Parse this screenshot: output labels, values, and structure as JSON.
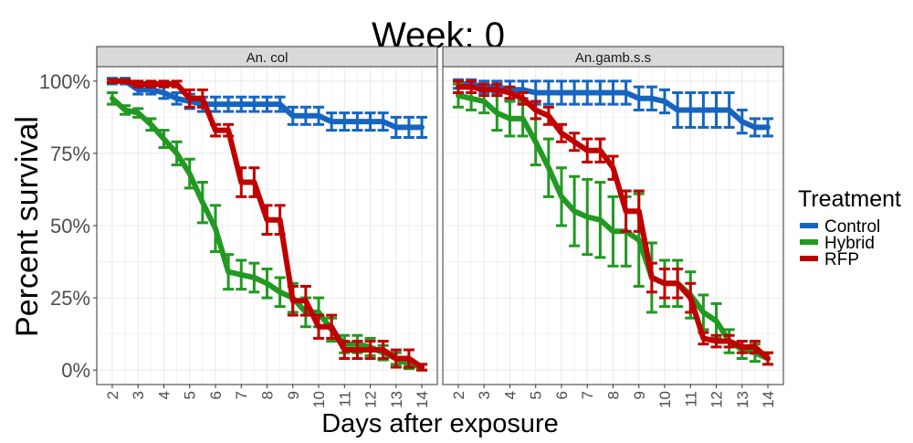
{
  "chart_data": {
    "type": "line",
    "title": "Week: 0",
    "xlabel": "Days after exposure",
    "ylabel": "Percent survival",
    "x": [
      2,
      3,
      4,
      5,
      6,
      7,
      8,
      9,
      10,
      11,
      12,
      13,
      14
    ],
    "ylim": [
      0,
      100
    ],
    "y_ticks": [
      "0%",
      "25%",
      "50%",
      "75%",
      "100%"
    ],
    "legend_title": "Treatment",
    "legend_position": "right",
    "grid": true,
    "colors": {
      "Control": "#1565c0",
      "Hybrid": "#229922",
      "RFP": "#c00000"
    },
    "panels": [
      {
        "title": "An. col",
        "series": [
          {
            "name": "Control",
            "x": [
              2,
              2.5,
              3,
              3.5,
              4,
              4.5,
              5,
              5.5,
              6,
              6.5,
              7,
              7.5,
              8,
              8.5,
              9,
              9.5,
              10,
              10.5,
              11,
              11.5,
              12,
              12.5,
              13,
              13.5,
              14
            ],
            "y": [
              100,
              100,
              97,
              97,
              96,
              94,
              93,
              92,
              92,
              92,
              92,
              92,
              92,
              92,
              88,
              88,
              88,
              86,
              86,
              86,
              86,
              86,
              84,
              84,
              84
            ],
            "err": [
              1,
              1,
              1.5,
              1.5,
              2,
              2,
              2.5,
              2.5,
              2.5,
              2.5,
              2.5,
              2.5,
              2.5,
              2.5,
              3,
              3,
              3,
              3,
              3,
              3,
              3,
              3,
              3.5,
              3.5,
              3.5
            ]
          },
          {
            "name": "Hybrid",
            "x": [
              2,
              2.5,
              3,
              3.5,
              4,
              4.5,
              5,
              5.5,
              6,
              6.5,
              7,
              7.5,
              8,
              8.5,
              9,
              9.5,
              10,
              10.5,
              11,
              11.5,
              12,
              12.5,
              13,
              13.5,
              14
            ],
            "y": [
              94,
              90,
              89,
              85,
              80,
              75,
              68,
              58,
              49,
              34,
              33,
              32,
              30,
              27,
              25,
              20,
              20,
              14,
              9,
              9,
              8,
              6,
              4,
              2,
              1
            ],
            "err": [
              2,
              1.5,
              1.5,
              2,
              3,
              4,
              5,
              7,
              8,
              6,
              5,
              5,
              5,
              5,
              5,
              5,
              5,
              4,
              3,
              3,
              3,
              2.5,
              2,
              1.5,
              1
            ]
          },
          {
            "name": "RFP",
            "x": [
              2,
              2.5,
              3,
              3.5,
              4,
              4.5,
              5,
              5.5,
              6,
              6.5,
              7,
              7.5,
              8,
              8.5,
              9,
              9.5,
              10,
              10.5,
              11,
              11.5,
              12,
              12.5,
              13,
              13.5,
              14
            ],
            "y": [
              100,
              100,
              99,
              99,
              99,
              99,
              94,
              94,
              83,
              83,
              65,
              65,
              52,
              52,
              24,
              24,
              15,
              15,
              7,
              7,
              7,
              7,
              4,
              4,
              1
            ],
            "err": [
              0.5,
              0.5,
              1,
              1,
              1,
              1,
              3,
              3,
              2,
              2,
              5,
              5,
              5,
              5,
              5,
              5,
              4,
              4,
              3,
              3,
              3,
              3,
              3,
              3,
              1
            ]
          }
        ]
      },
      {
        "title": "An.gamb.s.s",
        "series": [
          {
            "name": "Control",
            "x": [
              2,
              2.5,
              3,
              3.5,
              4,
              4.5,
              5,
              5.5,
              6,
              6.5,
              7,
              7.5,
              8,
              8.5,
              9,
              9.5,
              10,
              10.5,
              11,
              11.5,
              12,
              12.5,
              13,
              13.5,
              14
            ],
            "y": [
              99,
              99,
              98,
              98,
              97,
              97,
              96,
              96,
              96,
              96,
              96,
              96,
              96,
              96,
              94,
              94,
              93,
              90,
              90,
              90,
              90,
              90,
              86,
              84,
              84
            ],
            "err": [
              1.5,
              1.5,
              2,
              2,
              3,
              3,
              4,
              4,
              4,
              4,
              4,
              4,
              4,
              4,
              4,
              4,
              4,
              6,
              6,
              6,
              6,
              6,
              4,
              3,
              3
            ]
          },
          {
            "name": "Hybrid",
            "x": [
              2,
              2.5,
              3,
              3.5,
              4,
              4.5,
              5,
              5.5,
              6,
              6.5,
              7,
              7.5,
              8,
              8.5,
              9,
              9.5,
              10,
              10.5,
              11,
              11.5,
              12,
              12.5,
              13,
              13.5,
              14
            ],
            "y": [
              95,
              94,
              93,
              89,
              87,
              87,
              79,
              70,
              60,
              55,
              53,
              52,
              48,
              48,
              45,
              32,
              30,
              30,
              26,
              20,
              17,
              10,
              7,
              6,
              4
            ],
            "err": [
              4,
              4,
              4,
              6,
              6,
              6,
              8,
              10,
              10,
              12,
              13,
              13,
              12,
              12,
              16,
              12,
              8,
              8,
              8,
              6,
              6,
              4,
              3,
              3,
              2
            ]
          },
          {
            "name": "RFP",
            "x": [
              2,
              2.5,
              3,
              3.5,
              4,
              4.5,
              5,
              5.5,
              6,
              6.5,
              7,
              7.5,
              8,
              8.5,
              9,
              9.5,
              10,
              10.5,
              11,
              11.5,
              12,
              12.5,
              13,
              13.5,
              14
            ],
            "y": [
              98,
              98,
              97,
              97,
              96,
              94,
              90,
              88,
              82,
              79,
              76,
              76,
              70,
              55,
              55,
              32,
              30,
              30,
              25,
              11,
              10,
              10,
              8,
              8,
              4
            ],
            "err": [
              2,
              2,
              2,
              2,
              2,
              2,
              3,
              3,
              3,
              3,
              4,
              4,
              4,
              7,
              7,
              5,
              5,
              5,
              5,
              2,
              2,
              2,
              2,
              2,
              2
            ]
          }
        ]
      }
    ]
  }
}
